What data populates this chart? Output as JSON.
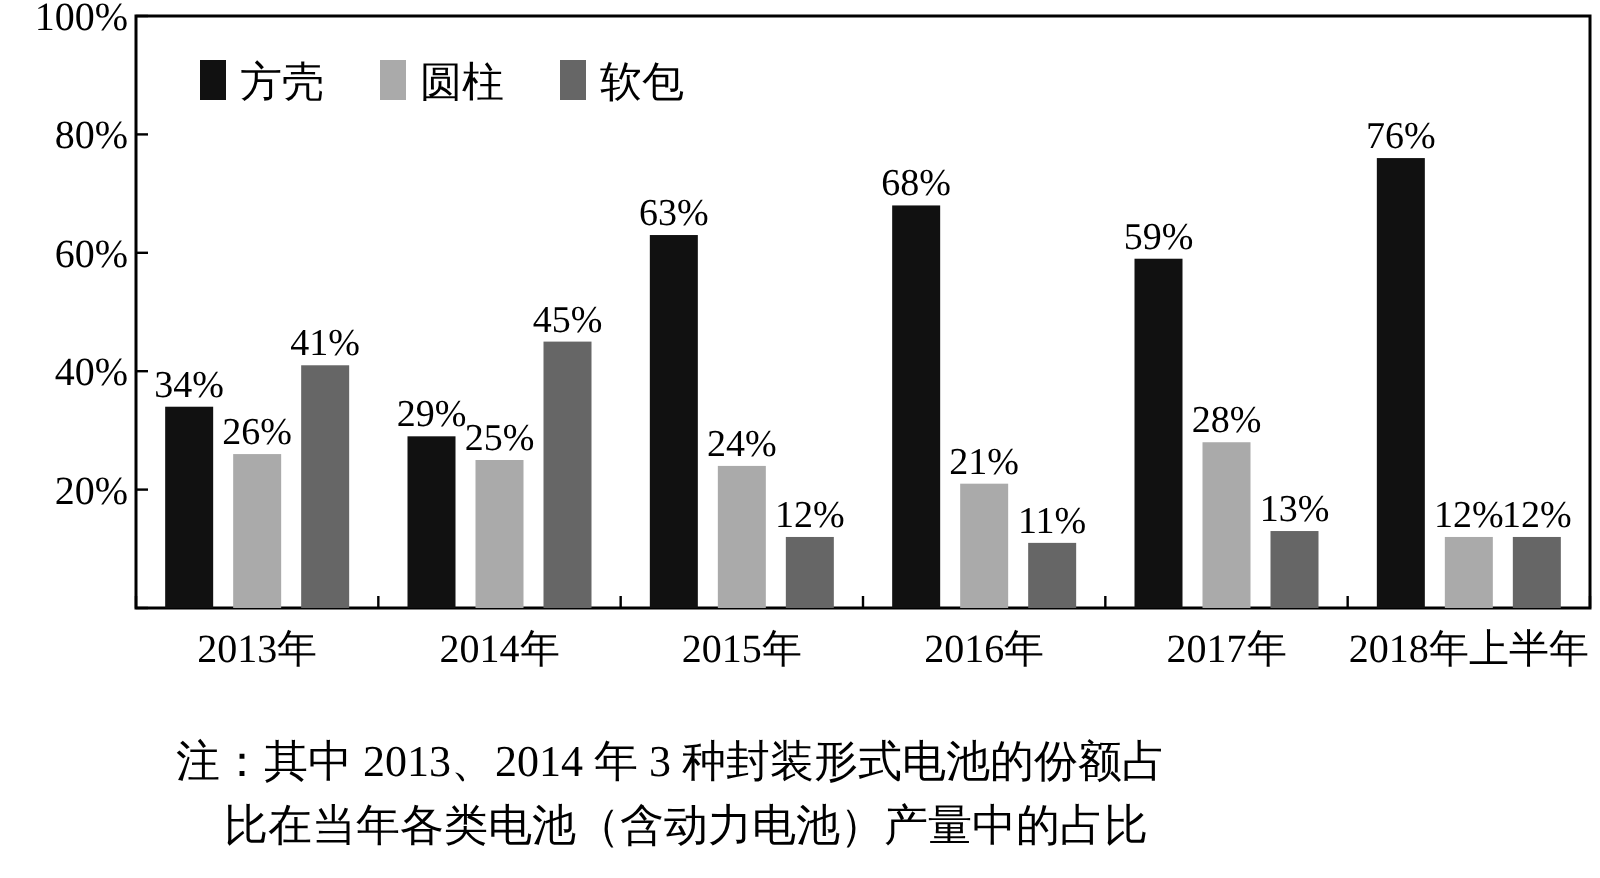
{
  "chart_data": {
    "type": "bar",
    "categories": [
      "2013年",
      "2014年",
      "2015年",
      "2016年",
      "2017年",
      "2018年上半年"
    ],
    "series": [
      {
        "name": "方壳",
        "color": "#111111",
        "values": [
          34,
          29,
          63,
          68,
          59,
          76
        ],
        "value_labels": [
          "34%",
          "29%",
          "63%",
          "68%",
          "59%",
          "76%"
        ]
      },
      {
        "name": "圆柱",
        "color": "#aaaaaa",
        "values": [
          26,
          25,
          24,
          21,
          28,
          12
        ],
        "value_labels": [
          "26%",
          "25%",
          "24%",
          "21%",
          "28%",
          "12%"
        ]
      },
      {
        "name": "软包",
        "color": "#666666",
        "values": [
          41,
          45,
          12,
          11,
          13,
          12
        ],
        "value_labels": [
          "41%",
          "45%",
          "12%",
          "11%",
          "13%",
          "12%"
        ]
      }
    ],
    "ylim": [
      0,
      100
    ],
    "yticks": [
      {
        "value": 0,
        "label": null
      },
      {
        "value": 20,
        "label": "20%"
      },
      {
        "value": 40,
        "label": "40%"
      },
      {
        "value": 60,
        "label": "60%"
      },
      {
        "value": 80,
        "label": "80%"
      },
      {
        "value": 100,
        "label": "100%"
      }
    ],
    "legend": "top left",
    "annotations": [
      "注：其中 2013、2014 年 3 种封装形式电池的份额占",
      "比在当年各类电池（含动力电池）产量中的占比"
    ]
  }
}
